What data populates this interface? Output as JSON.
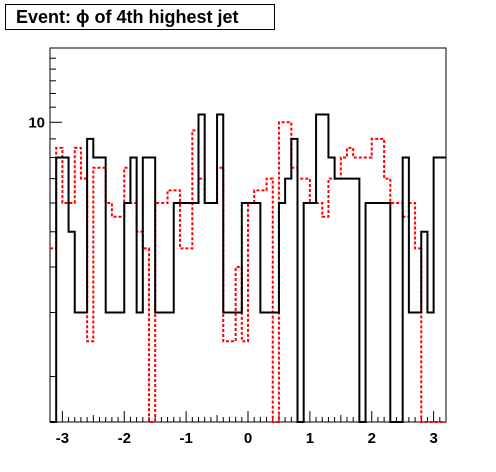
{
  "chart_data": {
    "type": "histogram",
    "title": "Event: ϕ of 4th highest jet",
    "x_range": [
      -3.2,
      3.2
    ],
    "y_scale": "log",
    "y_range": [
      1.5,
      16
    ],
    "x_ticks": [
      "-3",
      "-2",
      "-1",
      "0",
      "1",
      "2",
      "3"
    ],
    "x_tick_values": [
      -3,
      -2,
      -1,
      0,
      1,
      2,
      3
    ],
    "y_ticks": [
      "10"
    ],
    "y_tick_values": [
      10
    ],
    "bins": 64,
    "series": [
      {
        "color": "#000000",
        "line_style": "solid",
        "values": [
          1.5,
          8,
          8,
          5,
          3,
          3,
          9,
          8,
          8,
          3,
          3,
          3,
          6,
          8,
          3,
          8,
          8,
          3,
          3,
          3,
          6,
          6,
          6,
          6,
          10.5,
          6,
          6,
          10.5,
          3,
          3,
          3,
          6,
          6,
          6,
          3,
          3,
          3,
          6,
          7,
          9,
          1.5,
          6,
          6,
          10.5,
          10.5,
          8,
          7,
          7,
          7,
          7,
          1.5,
          6,
          6,
          6,
          6,
          1.5,
          1.5,
          8,
          3,
          3,
          5,
          3,
          8,
          8
        ]
      },
      {
        "color": "#ff0000",
        "line_style": "dotted",
        "values": [
          4.5,
          8.5,
          6,
          6,
          8.5,
          7,
          2.5,
          7.5,
          7.5,
          6,
          5.5,
          5.5,
          7.5,
          6,
          5,
          4.5,
          1.5,
          6,
          6,
          6.5,
          6.5,
          4.5,
          4.5,
          9.5,
          7,
          6,
          6,
          7.5,
          2.5,
          2.5,
          4,
          2.5,
          6,
          6.5,
          6.5,
          7,
          1.5,
          10,
          10,
          7.5,
          7,
          7,
          6,
          6,
          5.5,
          7,
          7,
          8,
          8.5,
          8,
          8,
          8,
          9,
          9,
          7,
          6,
          6,
          5.5,
          6,
          4.5,
          1.5,
          1.5,
          1.5,
          1.5
        ]
      }
    ]
  }
}
